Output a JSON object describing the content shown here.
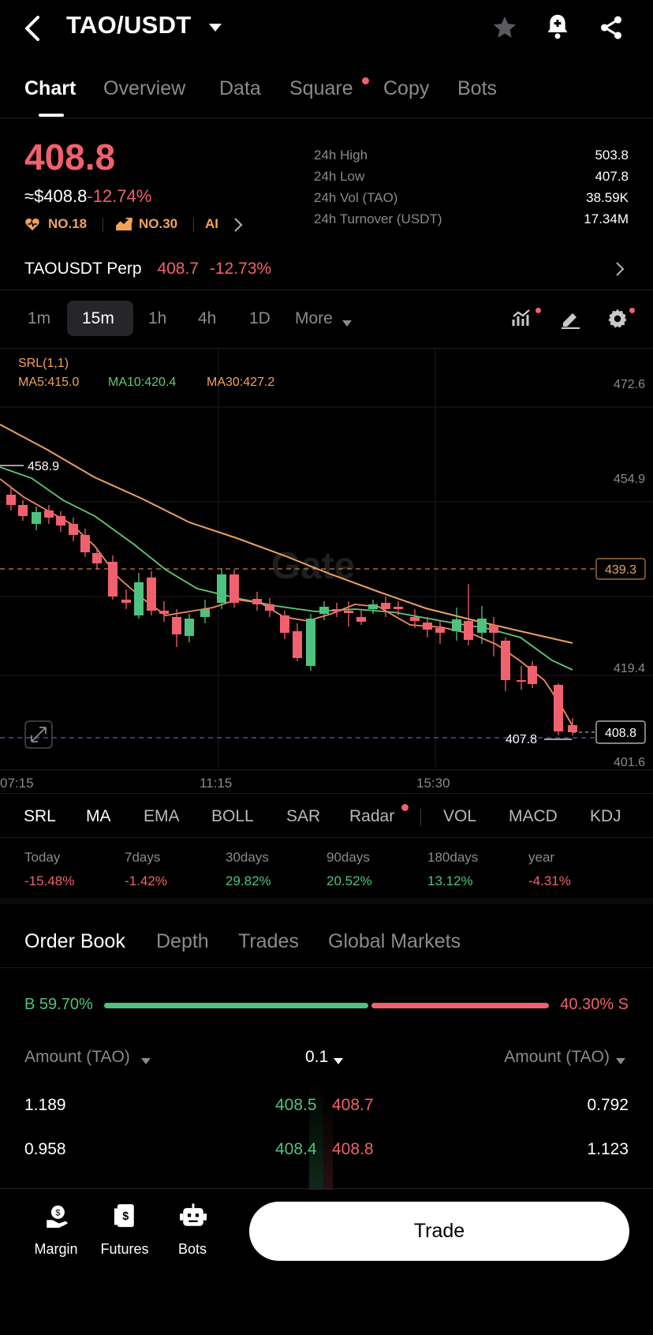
{
  "header": {
    "title": "TAO/USDT"
  },
  "tabs": [
    "Chart",
    "Overview",
    "Data",
    "Square",
    "Copy",
    "Bots"
  ],
  "price": {
    "last": "408.8",
    "usd": "≈$408.8",
    "change": "-12.74%",
    "rank1": "NO.18",
    "rank2": "NO.30",
    "ai": "AI"
  },
  "stats": [
    {
      "label": "24h High",
      "value": "503.8"
    },
    {
      "label": "24h Low",
      "value": "407.8"
    },
    {
      "label": "24h Vol (TAO)",
      "value": "38.59K"
    },
    {
      "label": "24h Turnover (USDT)",
      "value": "17.34M"
    }
  ],
  "perp": {
    "name": "TAOUSDT Perp",
    "price": "408.7",
    "change": "-12.73%"
  },
  "intervals": [
    "1m",
    "15m",
    "1h",
    "4h",
    "1D",
    "More"
  ],
  "chart": {
    "indicator_title": "SRL(1,1)",
    "ma5": "MA5:415.0",
    "ma10": "MA10:420.4",
    "ma30": "MA30:427.2",
    "watermark": "Gate",
    "y_ticks": [
      "472.6",
      "454.9",
      "419.4",
      "401.6"
    ],
    "dashed_level": "439.3",
    "current_price": "408.8",
    "high_mark": "458.9",
    "low_mark": "407.8",
    "x_ticks": [
      "07:15",
      "11:15",
      "15:30"
    ]
  },
  "indicators": [
    "SRL",
    "MA",
    "EMA",
    "BOLL",
    "SAR",
    "Radar",
    "VOL",
    "MACD",
    "KDJ"
  ],
  "performance": [
    {
      "label": "Today",
      "value": "-15.48%"
    },
    {
      "label": "7days",
      "value": "-1.42%"
    },
    {
      "label": "30days",
      "value": "29.82%"
    },
    {
      "label": "90days",
      "value": "20.52%"
    },
    {
      "label": "180days",
      "value": "13.12%"
    },
    {
      "label": "year",
      "value": "-4.31%"
    }
  ],
  "book_tabs": [
    "Order Book",
    "Depth",
    "Trades",
    "Global Markets"
  ],
  "ratio": {
    "buy": "B 59.70%",
    "sell": "40.30% S",
    "buy_fraction": 0.597
  },
  "order_book": {
    "left_header": "Amount (TAO)",
    "precision": "0.1",
    "right_header": "Amount (TAO)",
    "rows": [
      {
        "bid_amount": "1.189",
        "bid_price": "408.5",
        "ask_price": "408.7",
        "ask_amount": "0.792"
      },
      {
        "bid_amount": "0.958",
        "bid_price": "408.4",
        "ask_price": "408.8",
        "ask_amount": "1.123"
      }
    ]
  },
  "bottom_nav": [
    "Margin",
    "Futures",
    "Bots"
  ],
  "trade_label": "Trade"
}
